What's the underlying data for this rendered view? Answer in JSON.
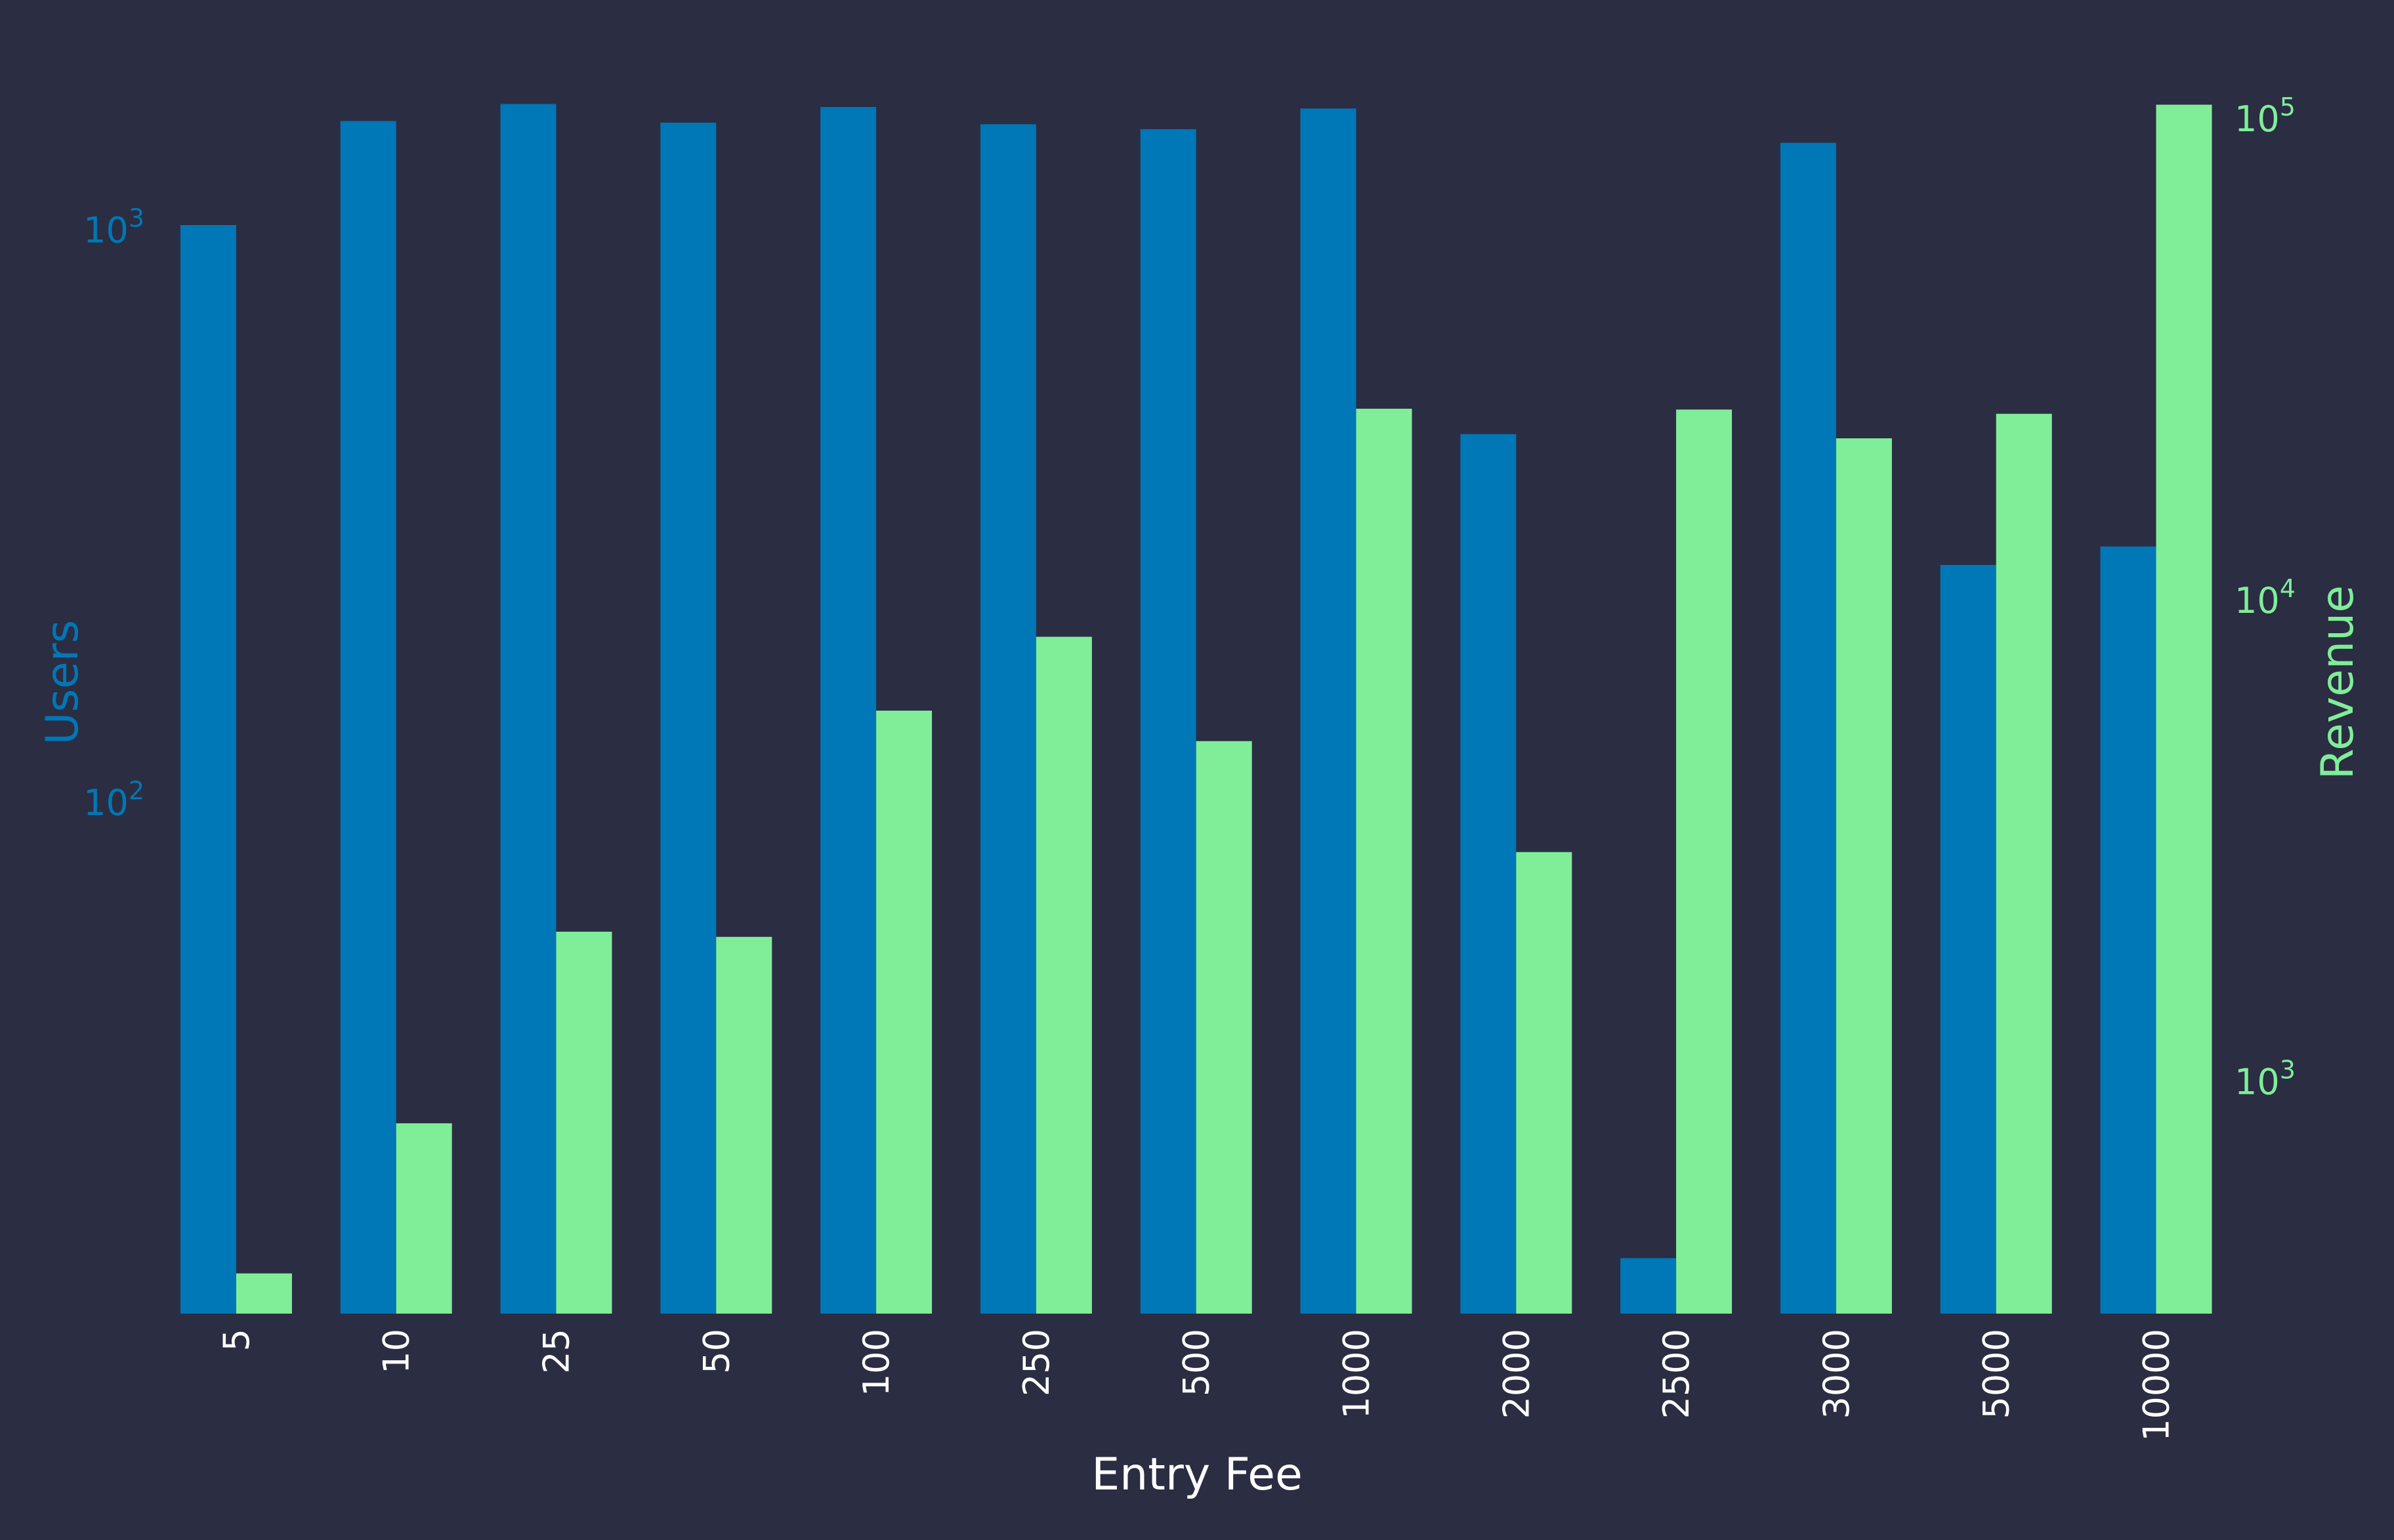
{
  "chart_data": {
    "type": "bar",
    "xlabel": "Entry Fee",
    "ylabel_left": "Users",
    "ylabel_right": "Revenue",
    "yscale_left": "log",
    "yscale_right": "log",
    "ylim_left": [
      12.8,
      1720
    ],
    "ylim_right": [
      330,
      112000
    ],
    "categories": [
      "5",
      "10",
      "25",
      "50",
      "100",
      "250",
      "500",
      "1000",
      "2000",
      "2500",
      "3000",
      "5000",
      "10000"
    ],
    "series": [
      {
        "name": "Users",
        "axis": "left",
        "values": [
          1020,
          1550,
          1660,
          1540,
          1640,
          1530,
          1500,
          1630,
          440,
          16,
          1420,
          260,
          280
        ]
      },
      {
        "name": "Revenue",
        "axis": "right",
        "values": [
          400,
          820,
          2050,
          2000,
          5900,
          8400,
          5100,
          25000,
          3000,
          24900,
          21700,
          24400,
          107000
        ]
      }
    ],
    "left_ticks": [
      {
        "value": 100,
        "base": "10",
        "exp": "2"
      },
      {
        "value": 1000,
        "base": "10",
        "exp": "3"
      }
    ],
    "right_ticks": [
      {
        "value": 1000,
        "base": "10",
        "exp": "3"
      },
      {
        "value": 10000,
        "base": "10",
        "exp": "4"
      },
      {
        "value": 100000,
        "base": "10",
        "exp": "5"
      }
    ],
    "grid": false,
    "legend": "none",
    "colors": {
      "background": "#2b2d42",
      "users": "#0077b6",
      "revenue": "#80ed99",
      "text": "#ffffff"
    }
  }
}
